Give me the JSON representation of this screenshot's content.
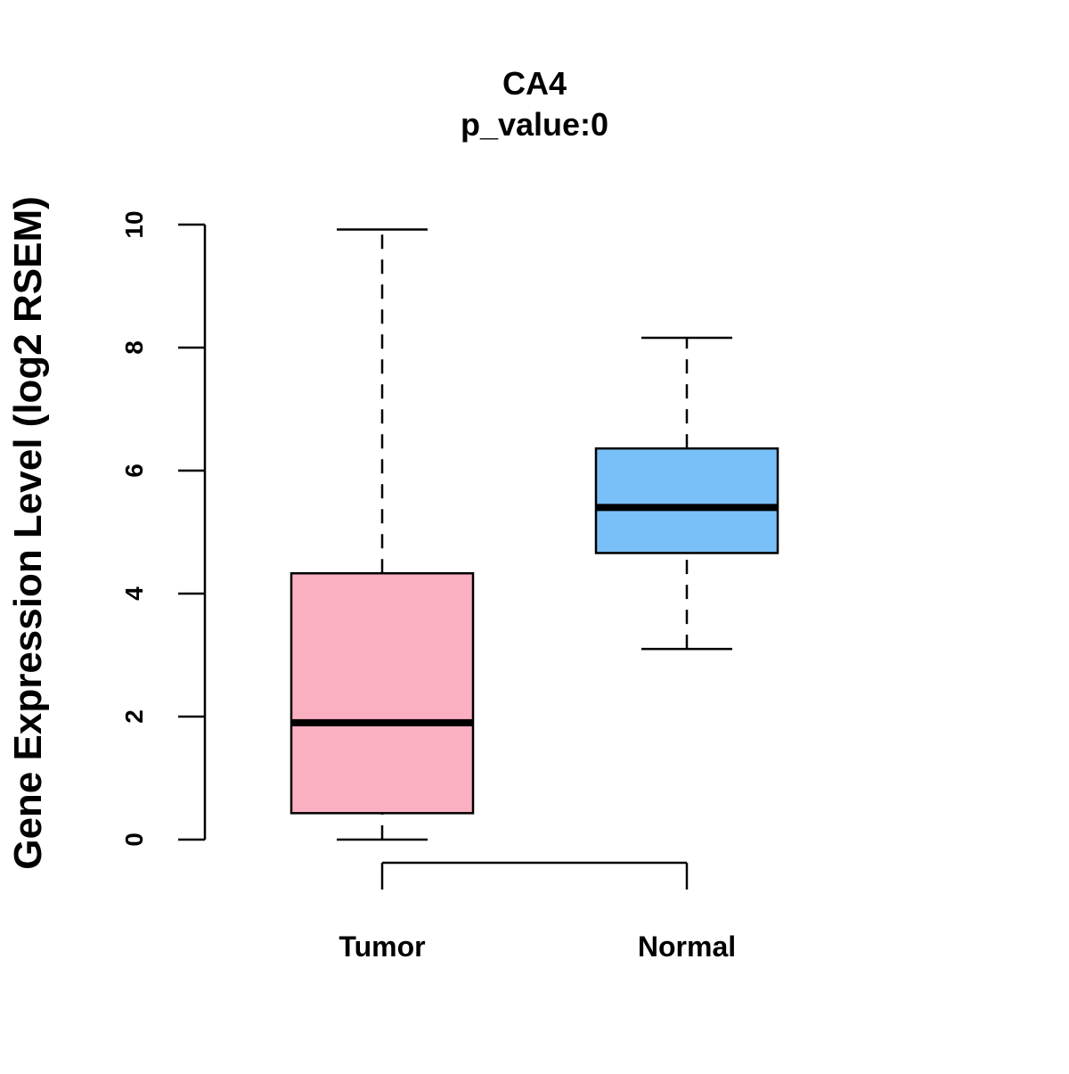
{
  "chart_data": {
    "type": "boxplot",
    "title": "CA4",
    "subtitle": "p_value:0",
    "xlabel": "",
    "ylabel": "Gene Expression Level (log2 RSEM)",
    "ylim": [
      0,
      10
    ],
    "yticks": [
      0,
      2,
      4,
      6,
      8,
      10
    ],
    "ytick_labels": [
      "0",
      "2",
      "4",
      "6",
      "8",
      "10"
    ],
    "grid": false,
    "categories": [
      "Tumor",
      "Normal"
    ],
    "boxes": [
      {
        "name": "Tumor",
        "min": 0.0,
        "q1": 0.43,
        "median": 1.9,
        "q3": 4.33,
        "max": 9.92,
        "color": "#FBB0C2"
      },
      {
        "name": "Normal",
        "min": 3.1,
        "q1": 4.66,
        "median": 5.4,
        "q3": 6.36,
        "max": 8.16,
        "color": "#79C0F8"
      }
    ],
    "comparison_bracket": [
      "Tumor",
      "Normal"
    ]
  }
}
